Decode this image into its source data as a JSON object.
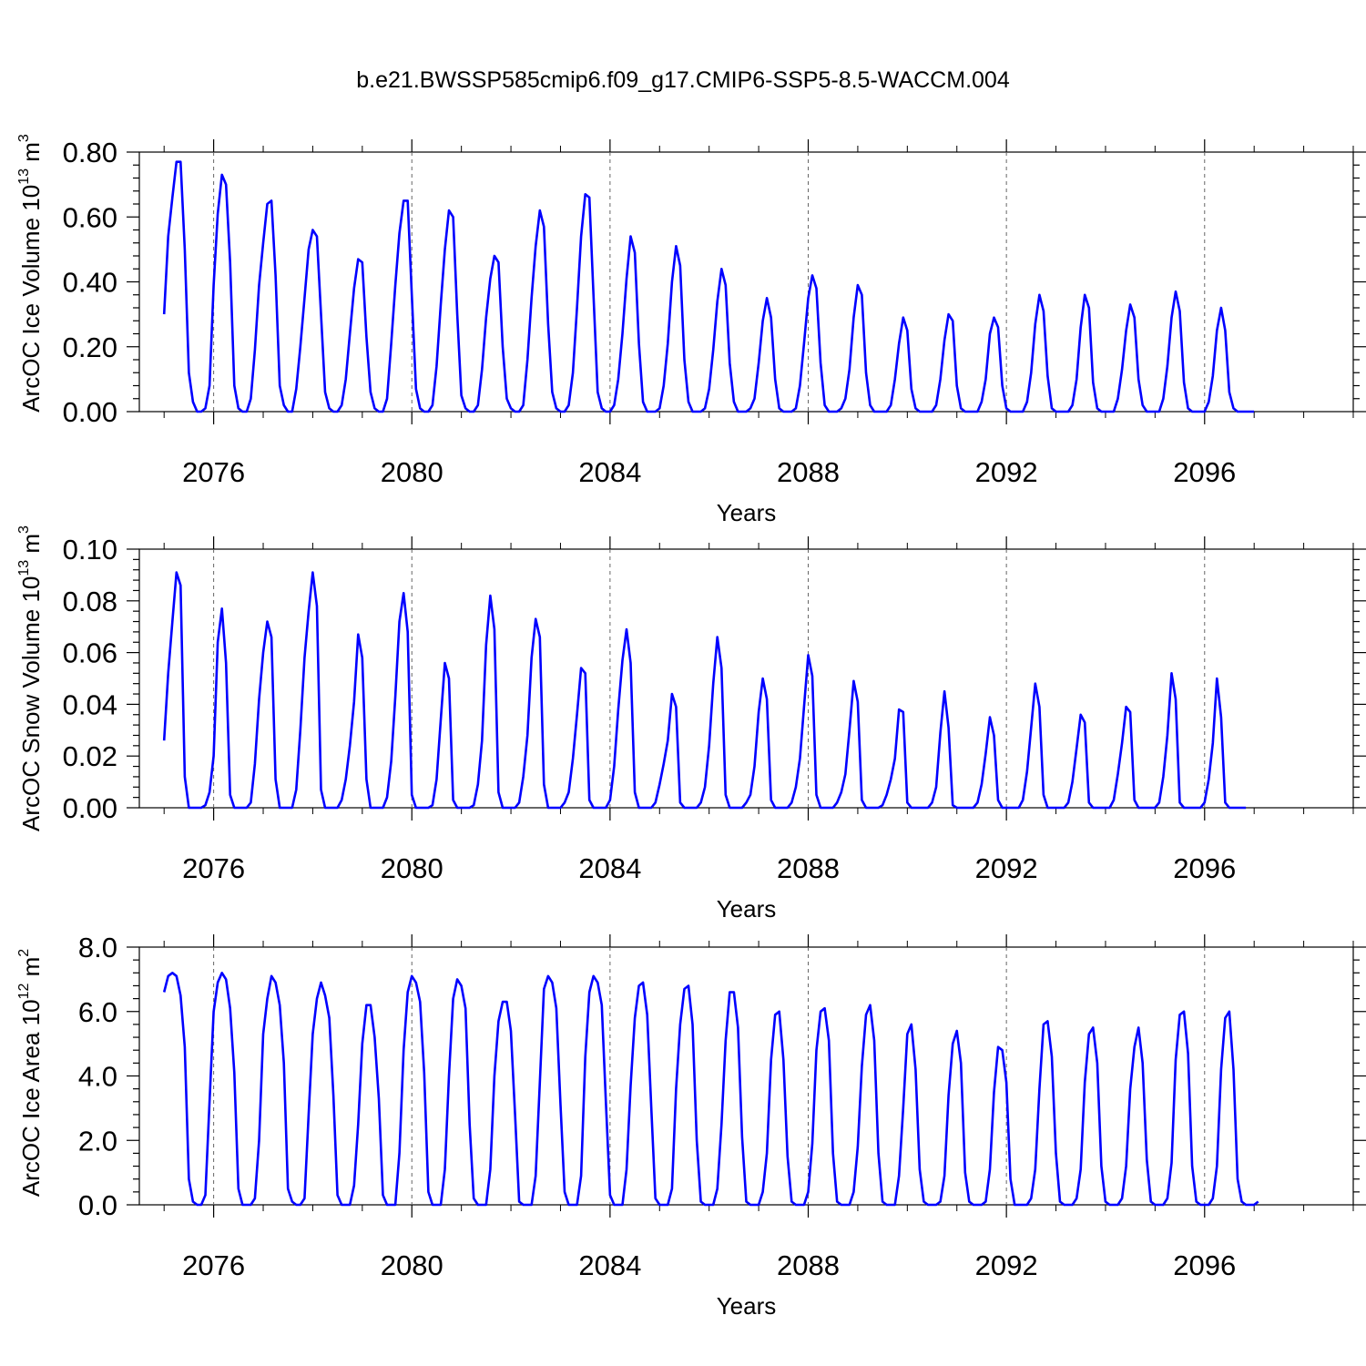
{
  "title": "b.e21.BWSSP585cmip6.f09_g17.CMIP6-SSP5-8.5-WACCM.004",
  "line_color": "#0000ff",
  "chart_data": [
    {
      "type": "line",
      "title": "b.e21.BWSSP585cmip6.f09_g17.CMIP6-SSP5-8.5-WACCM.004",
      "ylabel": "ArcOC Ice Volume 10",
      "ylabel_exp": "13",
      "ylabel_unit": "m",
      "ylabel_unit_exp": "3",
      "xlabel": "Years",
      "xlim": [
        2074.5,
        2099.0
      ],
      "ylim": [
        0,
        0.8
      ],
      "xticks": [
        2076,
        2080,
        2084,
        2088,
        2092,
        2096
      ],
      "xtick_labels": [
        "2076",
        "2080",
        "2084",
        "2088",
        "2092",
        "2096"
      ],
      "yticks": [
        0,
        0.2,
        0.4,
        0.6,
        0.8
      ],
      "ytick_labels": [
        "0.00",
        "0.20",
        "0.40",
        "0.60",
        "0.80"
      ],
      "start": 2075.0,
      "step": 0.08333,
      "series": [
        {
          "values": [
            0.3,
            0.54,
            0.66,
            0.77,
            0.77,
            0.5,
            0.12,
            0.03,
            0.0,
            0.0,
            0.01,
            0.08,
            0.39,
            0.61,
            0.73,
            0.7,
            0.46,
            0.08,
            0.01,
            0.0,
            0.0,
            0.04,
            0.19,
            0.39,
            0.52,
            0.64,
            0.65,
            0.42,
            0.08,
            0.02,
            0.0,
            0.0,
            0.07,
            0.2,
            0.35,
            0.5,
            0.56,
            0.54,
            0.3,
            0.06,
            0.01,
            0.0,
            0.0,
            0.02,
            0.1,
            0.24,
            0.38,
            0.47,
            0.46,
            0.23,
            0.06,
            0.01,
            0.0,
            0.0,
            0.04,
            0.21,
            0.39,
            0.55,
            0.65,
            0.65,
            0.36,
            0.07,
            0.01,
            0.0,
            0.0,
            0.02,
            0.14,
            0.33,
            0.5,
            0.62,
            0.6,
            0.3,
            0.05,
            0.01,
            0.0,
            0.0,
            0.02,
            0.13,
            0.29,
            0.41,
            0.48,
            0.46,
            0.2,
            0.04,
            0.01,
            0.0,
            0.0,
            0.02,
            0.16,
            0.35,
            0.51,
            0.62,
            0.57,
            0.27,
            0.06,
            0.01,
            0.0,
            0.0,
            0.02,
            0.12,
            0.32,
            0.54,
            0.67,
            0.66,
            0.36,
            0.06,
            0.01,
            0.0,
            0.0,
            0.02,
            0.1,
            0.24,
            0.41,
            0.54,
            0.49,
            0.21,
            0.03,
            0.0,
            0.0,
            0.0,
            0.01,
            0.08,
            0.21,
            0.4,
            0.51,
            0.45,
            0.16,
            0.03,
            0.0,
            0.0,
            0.0,
            0.01,
            0.07,
            0.19,
            0.34,
            0.44,
            0.39,
            0.15,
            0.03,
            0.0,
            0.0,
            0.0,
            0.01,
            0.04,
            0.15,
            0.28,
            0.35,
            0.29,
            0.1,
            0.01,
            0.0,
            0.0,
            0.0,
            0.01,
            0.08,
            0.21,
            0.35,
            0.42,
            0.38,
            0.15,
            0.02,
            0.0,
            0.0,
            0.0,
            0.01,
            0.04,
            0.13,
            0.29,
            0.39,
            0.36,
            0.12,
            0.02,
            0.0,
            0.0,
            0.0,
            0.0,
            0.02,
            0.1,
            0.21,
            0.29,
            0.25,
            0.07,
            0.01,
            0.0,
            0.0,
            0.0,
            0.0,
            0.02,
            0.1,
            0.22,
            0.3,
            0.28,
            0.08,
            0.01,
            0.0,
            0.0,
            0.0,
            0.0,
            0.03,
            0.1,
            0.24,
            0.29,
            0.26,
            0.08,
            0.01,
            0.0,
            0.0,
            0.0,
            0.0,
            0.03,
            0.12,
            0.27,
            0.36,
            0.31,
            0.11,
            0.01,
            0.0,
            0.0,
            0.0,
            0.0,
            0.02,
            0.1,
            0.26,
            0.36,
            0.32,
            0.09,
            0.01,
            0.0,
            0.0,
            0.0,
            0.0,
            0.04,
            0.13,
            0.25,
            0.33,
            0.29,
            0.1,
            0.02,
            0.0,
            0.0,
            0.0,
            0.0,
            0.04,
            0.14,
            0.29,
            0.37,
            0.31,
            0.09,
            0.01,
            0.0,
            0.0,
            0.0,
            0.0,
            0.03,
            0.11,
            0.25,
            0.32,
            0.25,
            0.06,
            0.01,
            0.0,
            0.0,
            0.0,
            0.0,
            0.0
          ]
        }
      ]
    },
    {
      "type": "line",
      "ylabel": "ArcOC Snow Volume 10",
      "ylabel_exp": "13",
      "ylabel_unit": "m",
      "ylabel_unit_exp": "3",
      "xlabel": "Years",
      "xlim": [
        2074.5,
        2099.0
      ],
      "ylim": [
        0,
        0.1
      ],
      "xticks": [
        2076,
        2080,
        2084,
        2088,
        2092,
        2096
      ],
      "xtick_labels": [
        "2076",
        "2080",
        "2084",
        "2088",
        "2092",
        "2096"
      ],
      "yticks": [
        0,
        0.02,
        0.04,
        0.06,
        0.08,
        0.1
      ],
      "ytick_labels": [
        "0.00",
        "0.02",
        "0.04",
        "0.06",
        "0.08",
        "0.10"
      ],
      "start": 2075.0,
      "step": 0.08333,
      "series": [
        {
          "values": [
            0.026,
            0.052,
            0.072,
            0.091,
            0.086,
            0.012,
            0.0,
            0.0,
            0.0,
            0.0,
            0.001,
            0.006,
            0.02,
            0.064,
            0.077,
            0.056,
            0.005,
            0.0,
            0.0,
            0.0,
            0.0,
            0.002,
            0.017,
            0.042,
            0.06,
            0.072,
            0.066,
            0.011,
            0.0,
            0.0,
            0.0,
            0.0,
            0.007,
            0.03,
            0.058,
            0.076,
            0.091,
            0.078,
            0.007,
            0.0,
            0.0,
            0.0,
            0.0,
            0.003,
            0.011,
            0.024,
            0.041,
            0.067,
            0.058,
            0.011,
            0.0,
            0.0,
            0.0,
            0.0,
            0.004,
            0.018,
            0.043,
            0.072,
            0.083,
            0.068,
            0.005,
            0.0,
            0.0,
            0.0,
            0.0,
            0.001,
            0.011,
            0.034,
            0.056,
            0.05,
            0.003,
            0.0,
            0.0,
            0.0,
            0.0,
            0.001,
            0.009,
            0.026,
            0.063,
            0.082,
            0.069,
            0.006,
            0.0,
            0.0,
            0.0,
            0.0,
            0.002,
            0.012,
            0.028,
            0.058,
            0.073,
            0.066,
            0.009,
            0.0,
            0.0,
            0.0,
            0.0,
            0.002,
            0.006,
            0.019,
            0.036,
            0.054,
            0.052,
            0.003,
            0.0,
            0.0,
            0.0,
            0.0,
            0.003,
            0.016,
            0.038,
            0.057,
            0.069,
            0.056,
            0.006,
            0.0,
            0.0,
            0.0,
            0.0,
            0.002,
            0.009,
            0.017,
            0.026,
            0.044,
            0.039,
            0.002,
            0.0,
            0.0,
            0.0,
            0.0,
            0.002,
            0.008,
            0.024,
            0.048,
            0.066,
            0.054,
            0.005,
            0.0,
            0.0,
            0.0,
            0.0,
            0.002,
            0.005,
            0.016,
            0.037,
            0.05,
            0.042,
            0.003,
            0.0,
            0.0,
            0.0,
            0.0,
            0.002,
            0.008,
            0.019,
            0.039,
            0.059,
            0.051,
            0.005,
            0.0,
            0.0,
            0.0,
            0.0,
            0.002,
            0.006,
            0.013,
            0.03,
            0.049,
            0.041,
            0.003,
            0.0,
            0.0,
            0.0,
            0.0,
            0.001,
            0.005,
            0.011,
            0.019,
            0.038,
            0.037,
            0.002,
            0.0,
            0.0,
            0.0,
            0.0,
            0.0,
            0.002,
            0.008,
            0.029,
            0.045,
            0.031,
            0.001,
            0.0,
            0.0,
            0.0,
            0.0,
            0.0,
            0.002,
            0.009,
            0.021,
            0.035,
            0.028,
            0.003,
            0.0,
            0.0,
            0.0,
            0.0,
            0.0,
            0.003,
            0.014,
            0.031,
            0.048,
            0.039,
            0.005,
            0.0,
            0.0,
            0.0,
            0.0,
            0.0,
            0.002,
            0.01,
            0.023,
            0.036,
            0.033,
            0.002,
            0.0,
            0.0,
            0.0,
            0.0,
            0.0,
            0.003,
            0.013,
            0.025,
            0.039,
            0.037,
            0.003,
            0.0,
            0.0,
            0.0,
            0.0,
            0.0,
            0.002,
            0.012,
            0.028,
            0.052,
            0.042,
            0.002,
            0.0,
            0.0,
            0.0,
            0.0,
            0.0,
            0.002,
            0.011,
            0.025,
            0.05,
            0.035,
            0.002,
            0.0,
            0.0,
            0.0,
            0.0,
            0.0
          ]
        }
      ]
    },
    {
      "type": "line",
      "ylabel": "ArcOC Ice Area 10",
      "ylabel_exp": "12",
      "ylabel_unit": "m",
      "ylabel_unit_exp": "2",
      "xlabel": "Years",
      "xlim": [
        2074.5,
        2099.0
      ],
      "ylim": [
        0,
        8
      ],
      "xticks": [
        2076,
        2080,
        2084,
        2088,
        2092,
        2096
      ],
      "xtick_labels": [
        "2076",
        "2080",
        "2084",
        "2088",
        "2092",
        "2096"
      ],
      "yticks": [
        0,
        2,
        4,
        6,
        8
      ],
      "ytick_labels": [
        "0.0",
        "2.0",
        "4.0",
        "6.0",
        "8.0"
      ],
      "start": 2075.0,
      "step": 0.08333,
      "series": [
        {
          "values": [
            6.6,
            7.1,
            7.2,
            7.1,
            6.5,
            4.9,
            0.8,
            0.1,
            0.0,
            0.0,
            0.3,
            3.2,
            6.0,
            6.9,
            7.2,
            7.0,
            6.1,
            4.1,
            0.5,
            0.0,
            0.0,
            0.0,
            0.2,
            2.0,
            5.3,
            6.4,
            7.1,
            6.9,
            6.2,
            4.4,
            0.5,
            0.1,
            0.0,
            0.0,
            0.2,
            2.8,
            5.3,
            6.4,
            6.9,
            6.5,
            5.8,
            3.4,
            0.3,
            0.0,
            0.0,
            0.0,
            0.6,
            2.5,
            5.0,
            6.2,
            6.2,
            5.2,
            3.3,
            0.3,
            0.0,
            0.0,
            0.0,
            1.6,
            4.8,
            6.6,
            7.1,
            6.9,
            6.3,
            4.1,
            0.4,
            0.0,
            0.0,
            0.0,
            1.1,
            4.0,
            6.4,
            7.0,
            6.8,
            6.1,
            2.5,
            0.2,
            0.0,
            0.0,
            0.0,
            1.1,
            4.0,
            5.7,
            6.3,
            6.3,
            5.4,
            2.8,
            0.1,
            0.0,
            0.0,
            0.0,
            0.9,
            3.8,
            6.7,
            7.1,
            6.9,
            6.1,
            3.1,
            0.4,
            0.0,
            0.0,
            0.0,
            0.9,
            4.6,
            6.6,
            7.1,
            6.9,
            6.2,
            3.2,
            0.3,
            0.0,
            0.0,
            0.0,
            1.1,
            3.7,
            5.8,
            6.8,
            6.9,
            5.9,
            3.0,
            0.2,
            0.0,
            0.0,
            0.0,
            0.5,
            3.6,
            5.6,
            6.7,
            6.8,
            5.6,
            2.0,
            0.1,
            0.0,
            0.0,
            0.0,
            0.5,
            2.5,
            5.1,
            6.6,
            6.6,
            5.5,
            2.1,
            0.1,
            0.0,
            0.0,
            0.0,
            0.4,
            1.6,
            4.5,
            5.9,
            6.0,
            4.5,
            1.5,
            0.1,
            0.0,
            0.0,
            0.0,
            0.4,
            1.9,
            4.8,
            6.0,
            6.1,
            5.1,
            1.6,
            0.1,
            0.0,
            0.0,
            0.0,
            0.4,
            1.8,
            4.3,
            5.9,
            6.2,
            5.1,
            1.6,
            0.1,
            0.0,
            0.0,
            0.0,
            0.9,
            3.0,
            5.3,
            5.6,
            4.2,
            1.1,
            0.1,
            0.0,
            0.0,
            0.0,
            0.1,
            0.9,
            3.4,
            5.0,
            5.4,
            4.4,
            1.0,
            0.1,
            0.0,
            0.0,
            0.0,
            0.1,
            1.1,
            3.5,
            4.9,
            4.8,
            3.8,
            0.8,
            0.0,
            0.0,
            0.0,
            0.0,
            0.2,
            1.1,
            3.6,
            5.6,
            5.7,
            4.6,
            1.6,
            0.1,
            0.0,
            0.0,
            0.0,
            0.2,
            1.1,
            3.8,
            5.3,
            5.5,
            4.4,
            1.2,
            0.1,
            0.0,
            0.0,
            0.0,
            0.2,
            1.2,
            3.6,
            4.9,
            5.5,
            4.4,
            1.4,
            0.1,
            0.0,
            0.0,
            0.0,
            0.2,
            1.3,
            4.5,
            5.9,
            6.0,
            4.7,
            1.2,
            0.1,
            0.0,
            0.0,
            0.0,
            0.2,
            1.2,
            4.2,
            5.8,
            6.0,
            4.2,
            0.8,
            0.1,
            0.0,
            0.0,
            0.0,
            0.1
          ]
        }
      ]
    }
  ]
}
